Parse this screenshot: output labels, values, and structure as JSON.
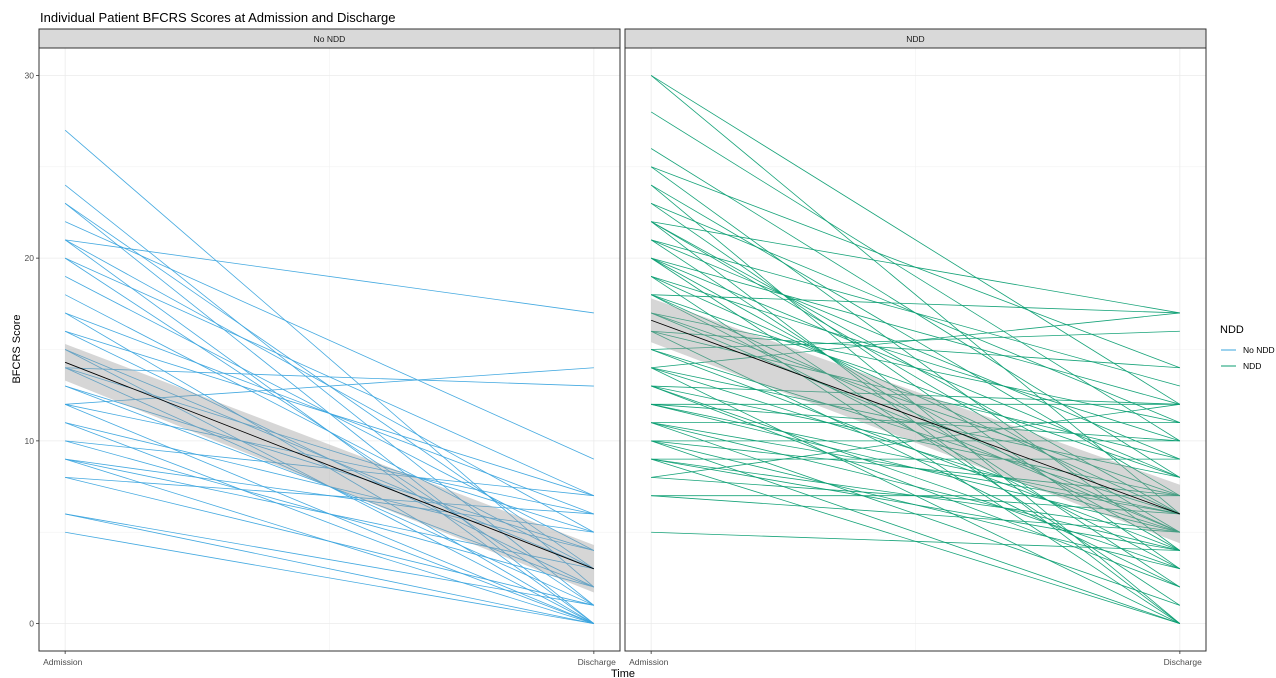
{
  "chart_data": {
    "type": "line",
    "title": "Individual Patient BFCRS Scores at Admission and Discharge",
    "xlabel": "Time",
    "ylabel": "BFCRS Score",
    "x": [
      "Admission",
      "Discharge"
    ],
    "ylim": [
      -1.5,
      31.5
    ],
    "y_ticks": [
      0,
      10,
      20,
      30
    ],
    "grid": true,
    "legend": {
      "title": "NDD",
      "position": "right",
      "entries": [
        {
          "label": "No NDD",
          "color": "#3aa4de"
        },
        {
          "label": "NDD",
          "color": "#0b9e72"
        }
      ]
    },
    "facets": [
      {
        "label": "No NDD",
        "color": "#3aa4de",
        "trend": {
          "admission": 14.3,
          "discharge": 3.0,
          "band_halfwidth_admission": 1.0,
          "band_halfwidth_discharge": 1.3
        },
        "patients": [
          [
            27,
            2
          ],
          [
            24,
            1
          ],
          [
            23,
            3
          ],
          [
            23,
            0
          ],
          [
            22,
            9
          ],
          [
            21,
            17
          ],
          [
            21,
            5
          ],
          [
            21,
            0
          ],
          [
            20,
            7
          ],
          [
            20,
            1
          ],
          [
            19,
            4
          ],
          [
            17,
            6
          ],
          [
            17,
            0
          ],
          [
            16,
            7
          ],
          [
            16,
            2
          ],
          [
            15,
            3
          ],
          [
            15,
            0
          ],
          [
            14,
            13
          ],
          [
            14,
            5
          ],
          [
            14,
            1
          ],
          [
            13,
            2
          ],
          [
            12,
            14
          ],
          [
            12,
            6
          ],
          [
            12,
            0
          ],
          [
            11,
            4
          ],
          [
            11,
            0
          ],
          [
            10,
            7
          ],
          [
            10,
            2
          ],
          [
            9,
            3
          ],
          [
            9,
            5
          ],
          [
            9,
            0
          ],
          [
            8,
            6
          ],
          [
            8,
            1
          ],
          [
            6,
            1
          ],
          [
            6,
            0
          ],
          [
            5,
            0
          ],
          [
            13,
            4
          ],
          [
            18,
            3
          ]
        ]
      },
      {
        "label": "NDD",
        "color": "#0b9e72",
        "trend": {
          "admission": 16.6,
          "discharge": 6.0,
          "band_halfwidth_admission": 1.2,
          "band_halfwidth_discharge": 1.6
        },
        "patients": [
          [
            30,
            12
          ],
          [
            30,
            6
          ],
          [
            28,
            10
          ],
          [
            26,
            8
          ],
          [
            25,
            14
          ],
          [
            25,
            4
          ],
          [
            24,
            7
          ],
          [
            24,
            0
          ],
          [
            23,
            11
          ],
          [
            23,
            3
          ],
          [
            22,
            17
          ],
          [
            22,
            6
          ],
          [
            22,
            5
          ],
          [
            21,
            13
          ],
          [
            21,
            9
          ],
          [
            21,
            2
          ],
          [
            20,
            12
          ],
          [
            20,
            4
          ],
          [
            20,
            1
          ],
          [
            19,
            10
          ],
          [
            19,
            6
          ],
          [
            19,
            0
          ],
          [
            18,
            17
          ],
          [
            18,
            8
          ],
          [
            18,
            3
          ],
          [
            17,
            11
          ],
          [
            17,
            5
          ],
          [
            17,
            7
          ],
          [
            16,
            14
          ],
          [
            16,
            9
          ],
          [
            16,
            2
          ],
          [
            15,
            6
          ],
          [
            15,
            4
          ],
          [
            14,
            17
          ],
          [
            14,
            8
          ],
          [
            14,
            5
          ],
          [
            14,
            0
          ],
          [
            13,
            12
          ],
          [
            13,
            7
          ],
          [
            13,
            3
          ],
          [
            12,
            12
          ],
          [
            12,
            10
          ],
          [
            12,
            5
          ],
          [
            12,
            6
          ],
          [
            11,
            11
          ],
          [
            11,
            6
          ],
          [
            11,
            4
          ],
          [
            11,
            1
          ],
          [
            10,
            10
          ],
          [
            10,
            7
          ],
          [
            10,
            3
          ],
          [
            9,
            9
          ],
          [
            9,
            5
          ],
          [
            9,
            4
          ],
          [
            9,
            0
          ],
          [
            8,
            12
          ],
          [
            8,
            6
          ],
          [
            7,
            7
          ],
          [
            7,
            5
          ],
          [
            5,
            4
          ],
          [
            15,
            16
          ],
          [
            13,
            2
          ],
          [
            20,
            8
          ],
          [
            22,
            0
          ],
          [
            18,
            5
          ],
          [
            10,
            0
          ]
        ]
      }
    ]
  }
}
